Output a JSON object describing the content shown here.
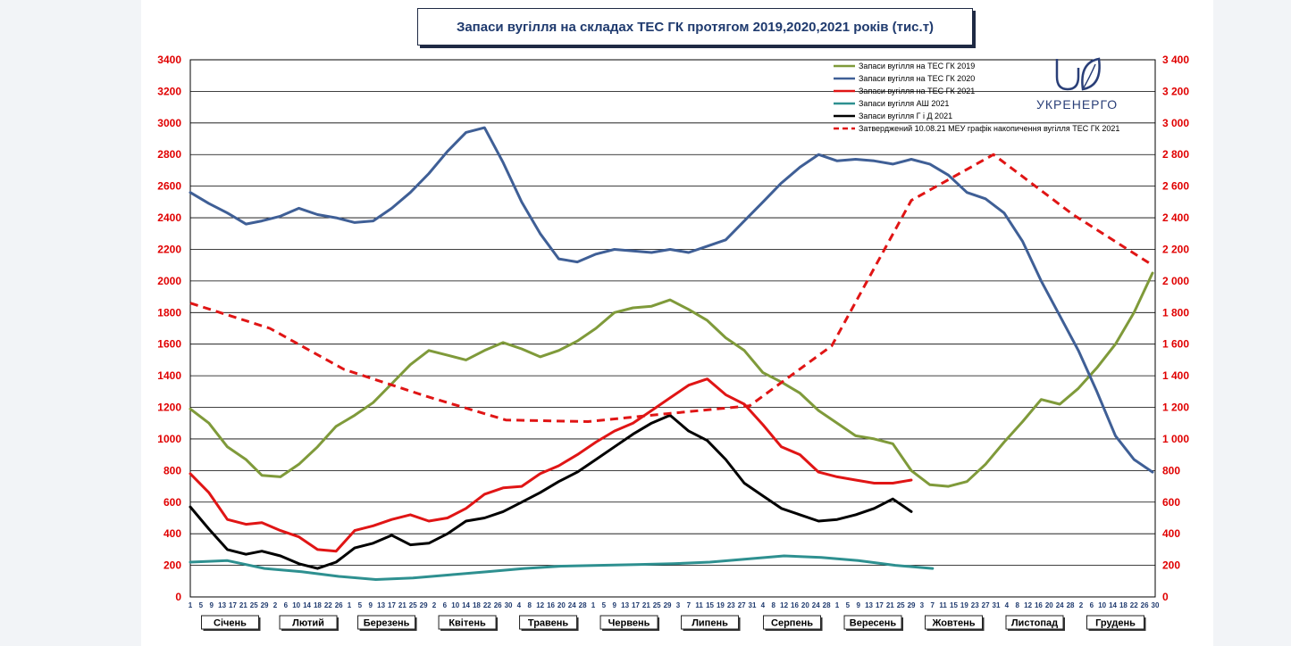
{
  "chart_data": {
    "type": "line",
    "title": "Запаси вугілля на складах ТЕС ГК протягом 2019,2020,2021 років (тис.т)",
    "ylim": [
      0,
      3400
    ],
    "yticks_left": [
      "0",
      "200",
      "400",
      "600",
      "800",
      "1000",
      "1200",
      "1400",
      "1600",
      "1800",
      "2000",
      "2200",
      "2400",
      "2600",
      "2800",
      "3000",
      "3200",
      "3400"
    ],
    "yticks_right": [
      "0",
      "200",
      "400",
      "600",
      "800",
      "1 000",
      "1 200",
      "1 400",
      "1 600",
      "1 800",
      "2 000",
      "2 200",
      "2 400",
      "2 600",
      "2 800",
      "3 000",
      "3 200",
      "3 400"
    ],
    "x_day_labels": [
      "1",
      "5",
      "9",
      "13",
      "17",
      "21",
      "25",
      "29",
      "2",
      "6",
      "10",
      "14",
      "18",
      "22",
      "26",
      "1",
      "5",
      "9",
      "13",
      "17",
      "21",
      "25",
      "29",
      "2",
      "6",
      "10",
      "14",
      "18",
      "22",
      "26",
      "30",
      "4",
      "8",
      "12",
      "16",
      "20",
      "24",
      "28",
      "1",
      "5",
      "9",
      "13",
      "17",
      "21",
      "25",
      "29",
      "3",
      "7",
      "11",
      "15",
      "19",
      "23",
      "27",
      "31",
      "4",
      "8",
      "12",
      "16",
      "20",
      "24",
      "28",
      "1",
      "5",
      "9",
      "13",
      "17",
      "21",
      "25",
      "29",
      "3",
      "7",
      "11",
      "15",
      "19",
      "23",
      "27",
      "31",
      "4",
      "8",
      "12",
      "16",
      "20",
      "24",
      "28",
      "2",
      "6",
      "10",
      "14",
      "18",
      "22",
      "26",
      "30"
    ],
    "months": [
      "Січень",
      "Лютий",
      "Березень",
      "Квітень",
      "Травень",
      "Червень",
      "Липень",
      "Серпень",
      "Вересень",
      "Жовтень",
      "Листопад",
      "Грудень"
    ],
    "grid": true,
    "legend_position": "top-right",
    "series": [
      {
        "name": "Запаси вугілля на ТЕС ГК 2019",
        "color": "#7f9a3a",
        "dashed": false,
        "x": [
          1,
          8,
          15,
          22,
          28,
          35,
          42,
          49,
          56,
          63,
          70,
          77,
          84,
          91,
          98,
          105,
          112,
          119,
          126,
          133,
          140,
          147,
          154,
          161,
          168,
          175,
          182,
          189,
          196,
          203,
          210,
          217,
          224,
          231,
          238,
          245,
          252,
          259,
          266,
          273,
          280,
          287,
          294,
          301,
          308,
          315,
          322,
          329,
          336,
          343,
          350,
          357,
          364
        ],
        "values": [
          1190,
          1100,
          950,
          870,
          770,
          760,
          840,
          950,
          1080,
          1150,
          1230,
          1350,
          1470,
          1560,
          1530,
          1500,
          1560,
          1610,
          1570,
          1520,
          1560,
          1620,
          1700,
          1800,
          1830,
          1840,
          1880,
          1820,
          1750,
          1640,
          1560,
          1420,
          1360,
          1290,
          1180,
          1100,
          1020,
          1000,
          970,
          800,
          710,
          700,
          730,
          840,
          980,
          1110,
          1250,
          1220,
          1320,
          1450,
          1600,
          1800,
          2050
        ]
      },
      {
        "name": "Запаси вугілля на ТЕС ГК 2020",
        "color": "#3f5f96",
        "dashed": false,
        "x": [
          1,
          8,
          15,
          22,
          28,
          35,
          42,
          49,
          56,
          63,
          70,
          77,
          84,
          91,
          98,
          105,
          112,
          119,
          126,
          133,
          140,
          147,
          154,
          161,
          168,
          175,
          182,
          189,
          196,
          203,
          210,
          217,
          224,
          231,
          238,
          245,
          252,
          259,
          266,
          273,
          280,
          287,
          294,
          301,
          308,
          315,
          322,
          329,
          336,
          343,
          350,
          357,
          364
        ],
        "values": [
          2560,
          2490,
          2430,
          2360,
          2380,
          2410,
          2460,
          2420,
          2400,
          2370,
          2380,
          2460,
          2560,
          2680,
          2820,
          2940,
          2970,
          2750,
          2500,
          2300,
          2140,
          2120,
          2170,
          2200,
          2190,
          2180,
          2200,
          2180,
          2220,
          2260,
          2380,
          2500,
          2620,
          2720,
          2800,
          2760,
          2770,
          2760,
          2740,
          2770,
          2740,
          2670,
          2560,
          2520,
          2430,
          2250,
          2000,
          1780,
          1560,
          1300,
          1020,
          870,
          790
        ]
      },
      {
        "name": "Запаси вугілля на ТЕС ГК 2021",
        "color": "#e01515",
        "dashed": false,
        "x": [
          1,
          8,
          15,
          22,
          28,
          35,
          42,
          49,
          56,
          63,
          70,
          77,
          84,
          91,
          98,
          105,
          112,
          119,
          126,
          133,
          140,
          147,
          154,
          161,
          168,
          175,
          182,
          189,
          196,
          203,
          210,
          217,
          224,
          231,
          238,
          245,
          252,
          259,
          266,
          273
        ],
        "values": [
          780,
          660,
          490,
          460,
          470,
          420,
          380,
          300,
          290,
          420,
          450,
          490,
          520,
          480,
          500,
          560,
          650,
          690,
          700,
          780,
          830,
          900,
          980,
          1050,
          1100,
          1180,
          1260,
          1340,
          1380,
          1280,
          1220,
          1090,
          950,
          900,
          790,
          760,
          740,
          720,
          720,
          740
        ]
      },
      {
        "name": "Запаси вугілля АШ 2021",
        "color": "#2e9090",
        "dashed": false,
        "x": [
          1,
          15,
          29,
          43,
          57,
          71,
          85,
          99,
          113,
          127,
          141,
          155,
          169,
          183,
          197,
          211,
          225,
          239,
          253,
          267,
          281
        ],
        "values": [
          220,
          230,
          180,
          160,
          130,
          110,
          120,
          140,
          160,
          180,
          195,
          200,
          205,
          210,
          220,
          240,
          260,
          250,
          230,
          200,
          180
        ]
      },
      {
        "name": "Запаси вугілля Г і Д 2021",
        "color": "#000000",
        "dashed": false,
        "x": [
          1,
          8,
          15,
          22,
          28,
          35,
          42,
          49,
          56,
          63,
          70,
          77,
          84,
          91,
          98,
          105,
          112,
          119,
          126,
          133,
          140,
          147,
          154,
          161,
          168,
          175,
          182,
          189,
          196,
          203,
          210,
          217,
          224,
          231,
          238,
          245,
          252,
          259,
          266,
          273
        ],
        "values": [
          570,
          430,
          300,
          270,
          290,
          260,
          210,
          180,
          220,
          310,
          340,
          390,
          330,
          340,
          400,
          480,
          500,
          540,
          600,
          660,
          730,
          790,
          870,
          950,
          1030,
          1100,
          1150,
          1050,
          990,
          870,
          720,
          640,
          560,
          520,
          480,
          490,
          520,
          560,
          620,
          540
        ]
      },
      {
        "name": "Затверджений 10.08.21 МЕУ графік накопичення вугілля ТЕС ГК 2021",
        "color": "#e01515",
        "dashed": true,
        "x": [
          1,
          31,
          59,
          90,
          120,
          151,
          181,
          212,
          243,
          273,
          304,
          334,
          364
        ],
        "values": [
          1860,
          1700,
          1440,
          1270,
          1120,
          1110,
          1160,
          1210,
          1590,
          2510,
          2800,
          2420,
          2100
        ]
      }
    ]
  },
  "logo": {
    "text": "УКРЕНЕРГО",
    "icon": "ukrenergo-logo-icon"
  }
}
